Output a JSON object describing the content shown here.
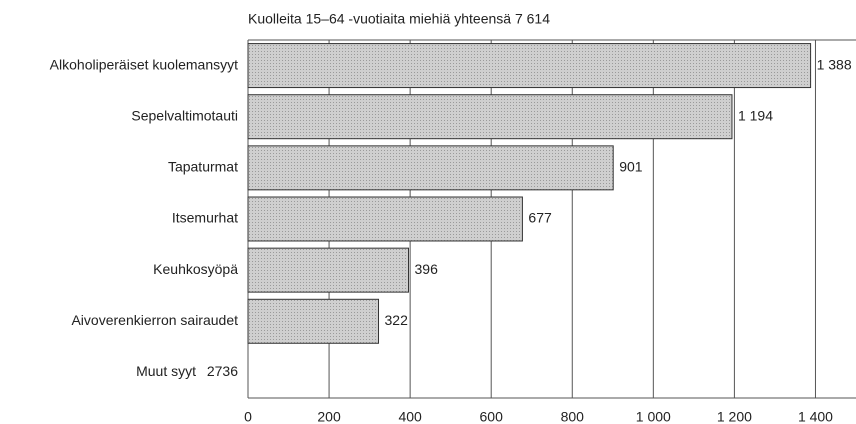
{
  "chart_data": {
    "type": "bar",
    "orientation": "horizontal",
    "title": "Kuolleita 15–64 -vuotiaita miehiä yhteensä 7 614",
    "categories": [
      "Alkoholiperäiset kuolemansyyt",
      "Sepelvaltimotauti",
      "Tapaturmat",
      "Itsemurhat",
      "Keuhkosyöpä",
      "Aivoverenkierron sairaudet"
    ],
    "values": [
      1388,
      1194,
      901,
      677,
      396,
      322
    ],
    "value_labels": [
      "1 388",
      "1 194",
      "901",
      "677",
      "396",
      "322"
    ],
    "other": {
      "label": "Muut syyt",
      "value": 2736
    },
    "color": "#c4c4c4",
    "xlim": [
      0,
      1500
    ],
    "xticks": [
      0,
      200,
      400,
      600,
      800,
      {
        "value": 1000,
        "label": "1 000"
      },
      {
        "value": 1200,
        "label": "1 200"
      },
      {
        "value": 1400,
        "label": "1 400"
      }
    ],
    "grid": true
  }
}
